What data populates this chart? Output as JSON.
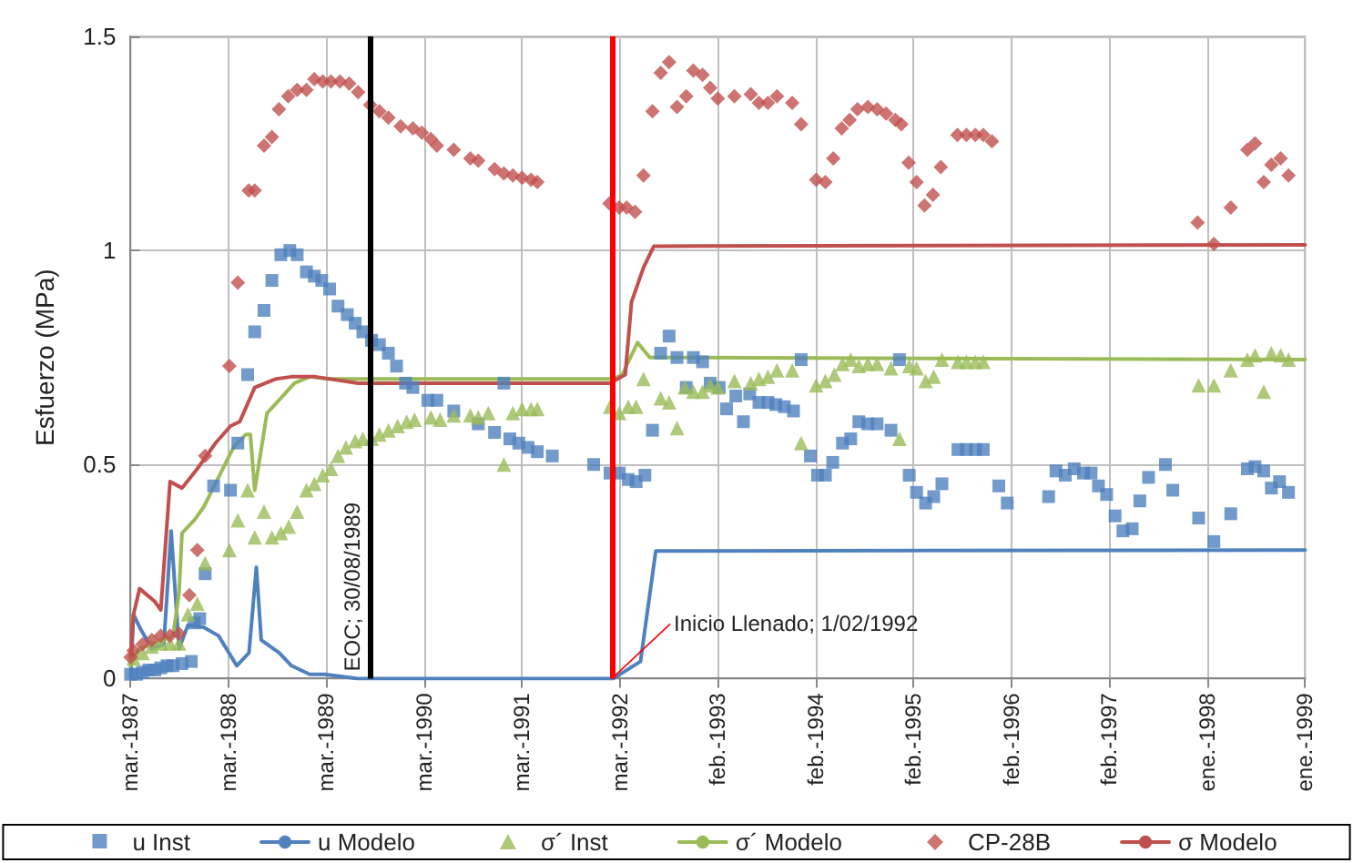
{
  "chart_data": {
    "type": "line",
    "ylabel": "Esfuerzo (MPa)",
    "xlim": [
      "1987-03-31",
      "1999-01-21"
    ],
    "xticks": [
      {
        "value": "1987-03-31",
        "label": "mar.-1987"
      },
      {
        "value": "1988-03-24",
        "label": "mar.-1988"
      },
      {
        "value": "1989-03-19",
        "label": "mar.-1989"
      },
      {
        "value": "1990-03-13",
        "label": "mar.-1990"
      },
      {
        "value": "1991-03-08",
        "label": "mar.-1991"
      },
      {
        "value": "1992-03-02",
        "label": "mar.-1992"
      },
      {
        "value": "1993-02-24",
        "label": "feb.-1993"
      },
      {
        "value": "1994-02-18",
        "label": "feb.-1994"
      },
      {
        "value": "1995-02-13",
        "label": "feb.-1995"
      },
      {
        "value": "1996-02-07",
        "label": "feb.-1996"
      },
      {
        "value": "1997-02-01",
        "label": "feb.-1997"
      },
      {
        "value": "1998-01-26",
        "label": "ene.-1998"
      },
      {
        "value": "1999-01-21",
        "label": "ene.-1999"
      }
    ],
    "ylim": [
      0,
      1.5
    ],
    "yticks": [
      0,
      0.5,
      1,
      1.5
    ],
    "grid": true,
    "legend": "bottom",
    "ref_lines": [
      {
        "axis": "x",
        "value": "1989-08-30",
        "label": "EOC; 30/08/1989",
        "color": "#000000"
      },
      {
        "axis": "x",
        "value": "1992-02-01",
        "color": "#ff0000"
      }
    ],
    "annotations": [
      {
        "text": "Inicio Llenado; 1/02/1992",
        "x": "1992-02-01",
        "y": 0
      }
    ],
    "series": [
      {
        "name": "u Inst",
        "type": "scatter",
        "marker": "square",
        "color": "#4f81bd",
        "x": [
          "1987-03-31",
          "1987-04-22",
          "1987-05-14",
          "1987-06-06",
          "1987-06-28",
          "1987-07-20",
          "1987-08-12",
          "1987-09-03",
          "1987-10-06",
          "1987-11-09",
          "1987-11-20",
          "1987-12-10",
          "1987-12-30",
          "1988-01-30",
          "1988-04-01",
          "1988-04-28",
          "1988-06-03",
          "1988-06-29",
          "1988-08-02",
          "1988-08-31",
          "1988-10-03",
          "1988-11-05",
          "1988-12-02",
          "1989-01-05",
          "1989-02-03",
          "1989-03-02",
          "1989-03-31",
          "1989-05-01",
          "1989-06-04",
          "1989-07-03",
          "1989-07-31",
          "1989-09-01",
          "1989-09-30",
          "1989-11-02",
          "1989-12-02",
          "1990-01-04",
          "1990-01-31",
          "1990-03-27",
          "1990-04-29",
          "1990-06-30",
          "1990-09-28",
          "1990-11-27",
          "1990-12-31",
          "1991-01-22",
          "1991-02-24",
          "1991-03-30",
          "1991-05-03",
          "1991-06-27",
          "1991-11-26",
          "1992-01-25",
          "1992-02-28",
          "1992-04-01",
          "1992-04-30",
          "1992-06-01",
          "1992-06-29",
          "1992-07-29",
          "1992-08-29",
          "1992-09-27",
          "1992-10-31",
          "1992-11-26",
          "1992-12-30",
          "1993-01-27",
          "1993-03-01",
          "1993-03-28",
          "1993-05-01",
          "1993-05-29",
          "1993-06-21",
          "1993-07-25",
          "1993-08-27",
          "1993-09-25",
          "1993-10-26",
          "1993-11-29",
          "1993-12-27",
          "1994-01-30",
          "1994-02-25",
          "1994-03-26",
          "1994-04-22",
          "1994-05-28",
          "1994-06-27",
          "1994-07-27",
          "1994-08-29",
          "1994-10-02",
          "1994-11-22",
          "1994-12-23",
          "1995-01-28",
          "1995-02-24",
          "1995-03-29",
          "1995-04-28",
          "1995-05-28",
          "1995-07-26",
          "1995-08-26",
          "1995-09-28",
          "1995-10-27",
          "1995-12-23",
          "1996-01-23",
          "1996-06-23",
          "1996-07-20",
          "1996-08-23",
          "1996-09-25",
          "1996-10-29",
          "1996-11-26",
          "1996-12-23",
          "1997-01-22",
          "1997-02-22",
          "1997-03-23",
          "1997-04-26",
          "1997-05-24",
          "1997-06-25",
          "1997-08-26",
          "1997-09-22",
          "1997-12-26",
          "1998-02-20",
          "1998-04-23",
          "1998-06-23",
          "1998-07-21",
          "1998-08-22",
          "1998-09-19",
          "1998-10-19",
          "1998-11-21"
        ],
        "values": [
          0.01,
          0.01,
          0.015,
          0.02,
          0.02,
          0.025,
          0.03,
          0.03,
          0.035,
          0.04,
          0.13,
          0.14,
          0.245,
          0.45,
          0.44,
          0.55,
          0.71,
          0.81,
          0.86,
          0.93,
          0.99,
          1.0,
          0.99,
          0.95,
          0.94,
          0.93,
          0.91,
          0.87,
          0.85,
          0.83,
          0.81,
          0.79,
          0.78,
          0.76,
          0.73,
          0.69,
          0.68,
          0.65,
          0.65,
          0.625,
          0.595,
          0.575,
          0.69,
          0.56,
          0.55,
          0.54,
          0.53,
          0.52,
          0.5,
          0.48,
          0.48,
          0.465,
          0.46,
          0.475,
          0.58,
          0.76,
          0.8,
          0.75,
          0.68,
          0.75,
          0.74,
          0.69,
          0.68,
          0.63,
          0.66,
          0.6,
          0.665,
          0.645,
          0.645,
          0.64,
          0.635,
          0.625,
          0.745,
          0.52,
          0.475,
          0.475,
          0.505,
          0.55,
          0.56,
          0.6,
          0.595,
          0.595,
          0.58,
          0.745,
          0.475,
          0.435,
          0.41,
          0.425,
          0.455,
          0.535,
          0.535,
          0.535,
          0.535,
          0.45,
          0.41,
          0.425,
          0.485,
          0.475,
          0.49,
          0.48,
          0.48,
          0.45,
          0.43,
          0.38,
          0.345,
          0.35,
          0.415,
          0.47,
          0.5,
          0.44,
          0.375,
          0.32,
          0.385,
          0.49,
          0.495,
          0.485,
          0.445,
          0.46,
          0.435
        ]
      },
      {
        "name": "u Modelo",
        "marker": "none",
        "color": "#4f81bd",
        "x": [
          "1987-03-31",
          "1987-04-11",
          "1987-05-03",
          "1987-06-17",
          "1987-07-31",
          "1987-08-27",
          "1987-09-25",
          "1987-10-28",
          "1987-12-24",
          "1988-02-17",
          "1988-04-24",
          "1988-06-08",
          "1988-07-05",
          "1988-07-23",
          "1988-09-27",
          "1988-11-11",
          "1989-01-17",
          "1989-03-13",
          "1989-07-14",
          "1992-02-06",
          "1992-05-16",
          "1992-07-11",
          "1999-01-21"
        ],
        "values": [
          0.005,
          0.15,
          0.12,
          0.07,
          0.08,
          0.345,
          0.07,
          0.125,
          0.12,
          0.1,
          0.03,
          0.06,
          0.26,
          0.09,
          0.06,
          0.03,
          0.01,
          0.01,
          0,
          0,
          0.04,
          0.298,
          0.3
        ]
      },
      {
        "name": "σ´ Inst",
        "type": "scatter",
        "marker": "triangle",
        "color": "#9bbb59",
        "x": [
          "1987-04-11",
          "1987-05-14",
          "1987-06-17",
          "1987-07-20",
          "1987-08-23",
          "1987-09-25",
          "1987-10-28",
          "1987-12-01",
          "1987-12-30",
          "1988-03-28",
          "1988-04-28",
          "1988-06-03",
          "1988-06-29",
          "1988-08-02",
          "1988-08-31",
          "1988-10-03",
          "1988-11-01",
          "1988-12-02",
          "1989-01-05",
          "1989-02-03",
          "1989-03-06",
          "1989-04-05",
          "1989-05-01",
          "1989-05-30",
          "1989-07-03",
          "1989-07-31",
          "1989-09-01",
          "1989-09-30",
          "1989-11-02",
          "1989-12-06",
          "1990-01-08",
          "1990-02-06",
          "1990-04-07",
          "1990-05-11",
          "1990-06-30",
          "1990-08-30",
          "1990-09-28",
          "1990-11-04",
          "1990-12-31",
          "1991-02-02",
          "1991-03-08",
          "1991-04-10",
          "1991-05-03",
          "1992-01-25",
          "1992-02-28",
          "1992-04-01",
          "1992-04-30",
          "1992-05-27",
          "1992-07-29",
          "1992-08-29",
          "1992-09-27",
          "1992-10-26",
          "1992-11-26",
          "1992-12-30",
          "1993-01-27",
          "1993-02-24",
          "1993-04-26",
          "1993-06-25",
          "1993-07-25",
          "1993-08-27",
          "1993-09-29",
          "1993-11-24",
          "1993-12-27",
          "1994-02-20",
          "1994-03-26",
          "1994-04-28",
          "1994-05-28",
          "1994-06-27",
          "1994-07-27",
          "1994-08-29",
          "1994-10-02",
          "1994-11-22",
          "1994-12-23",
          "1995-01-28",
          "1995-02-24",
          "1995-03-29",
          "1995-04-28",
          "1995-05-28",
          "1995-07-26",
          "1995-08-26",
          "1995-09-28",
          "1995-10-27",
          "1997-12-26",
          "1998-02-20",
          "1998-04-23",
          "1998-06-23",
          "1998-07-21",
          "1998-08-22",
          "1998-09-19",
          "1998-10-23",
          "1998-11-21"
        ],
        "values": [
          0.047,
          0.06,
          0.075,
          0.082,
          0.082,
          0.082,
          0.15,
          0.175,
          0.27,
          0.3,
          0.37,
          0.44,
          0.33,
          0.39,
          0.33,
          0.34,
          0.355,
          0.39,
          0.44,
          0.455,
          0.475,
          0.49,
          0.52,
          0.54,
          0.555,
          0.56,
          0.56,
          0.57,
          0.58,
          0.59,
          0.6,
          0.605,
          0.61,
          0.605,
          0.615,
          0.615,
          0.61,
          0.62,
          0.5,
          0.62,
          0.63,
          0.63,
          0.63,
          0.635,
          0.62,
          0.635,
          0.635,
          0.7,
          0.655,
          0.645,
          0.585,
          0.68,
          0.67,
          0.67,
          0.685,
          0.68,
          0.695,
          0.69,
          0.7,
          0.705,
          0.72,
          0.72,
          0.55,
          0.685,
          0.695,
          0.71,
          0.735,
          0.745,
          0.73,
          0.735,
          0.735,
          0.725,
          0.56,
          0.73,
          0.725,
          0.695,
          0.705,
          0.745,
          0.74,
          0.74,
          0.74,
          0.74,
          0.685,
          0.685,
          0.72,
          0.745,
          0.755,
          0.67,
          0.76,
          0.755,
          0.745
        ]
      },
      {
        "name": "σ´ Modelo",
        "marker": "none",
        "color": "#9bbb59",
        "x": [
          "1987-03-31",
          "1987-05-03",
          "1987-06-17",
          "1987-07-31",
          "1987-09-03",
          "1987-09-25",
          "1987-10-06",
          "1987-11-20",
          "1987-12-24",
          "1988-02-17",
          "1988-04-12",
          "1988-05-27",
          "1988-06-13",
          "1988-06-29",
          "1988-08-13",
          "1988-09-26",
          "1988-11-22",
          "1989-01-17",
          "1989-03-24",
          "1989-07-14",
          "1992-02-06",
          "1992-03-10",
          "1992-05-05",
          "1992-06-19",
          "1999-01-21"
        ],
        "values": [
          0.03,
          0.07,
          0.08,
          0.09,
          0.1,
          0.2,
          0.34,
          0.37,
          0.4,
          0.47,
          0.54,
          0.57,
          0.57,
          0.44,
          0.62,
          0.65,
          0.69,
          0.705,
          0.7,
          0.7,
          0.7,
          0.71,
          0.785,
          0.75,
          0.745
        ]
      },
      {
        "name": "CP-28B",
        "type": "scatter",
        "marker": "diamond",
        "color": "#c0504d",
        "x": [
          "1987-03-31",
          "1987-04-11",
          "1987-05-14",
          "1987-06-17",
          "1987-07-20",
          "1987-08-23",
          "1987-09-25",
          "1987-11-02",
          "1987-12-01",
          "1987-12-30",
          "1988-03-28",
          "1988-04-28",
          "1988-06-07",
          "1988-06-29",
          "1988-08-02",
          "1988-08-31",
          "1988-09-26",
          "1988-10-30",
          "1988-12-02",
          "1989-01-05",
          "1989-02-03",
          "1989-03-06",
          "1989-04-05",
          "1989-05-08",
          "1989-06-11",
          "1989-07-14",
          "1989-08-27",
          "1989-09-30",
          "1989-11-02",
          "1989-12-17",
          "1990-01-31",
          "1990-03-05",
          "1990-04-07",
          "1990-04-29",
          "1990-06-30",
          "1990-08-30",
          "1990-09-28",
          "1990-11-27",
          "1990-12-31",
          "1991-02-02",
          "1991-03-08",
          "1991-04-10",
          "1991-05-03",
          "1992-01-23",
          "1992-02-28",
          "1992-03-26",
          "1992-04-26",
          "1992-05-27",
          "1992-06-29",
          "1992-07-29",
          "1992-08-29",
          "1992-09-27",
          "1992-10-31",
          "1992-11-26",
          "1992-12-30",
          "1993-01-27",
          "1993-02-24",
          "1993-04-26",
          "1993-06-25",
          "1993-07-25",
          "1993-08-27",
          "1993-09-29",
          "1993-11-24",
          "1993-12-27",
          "1994-02-20",
          "1994-03-26",
          "1994-04-24",
          "1994-05-25",
          "1994-06-23",
          "1994-07-22",
          "1994-08-29",
          "1994-10-02",
          "1994-11-04",
          "1994-12-08",
          "1994-12-30",
          "1995-01-26",
          "1995-02-24",
          "1995-03-25",
          "1995-04-25",
          "1995-05-24",
          "1995-07-24",
          "1995-08-26",
          "1995-09-28",
          "1995-10-27",
          "1995-11-28",
          "1997-12-22",
          "1998-02-20",
          "1998-04-23",
          "1998-06-23",
          "1998-07-21",
          "1998-08-22",
          "1998-09-19",
          "1998-10-23",
          "1998-11-21"
        ],
        "values": [
          0.05,
          0.065,
          0.08,
          0.09,
          0.1,
          0.1,
          0.105,
          0.195,
          0.3,
          0.52,
          0.73,
          0.925,
          1.14,
          1.14,
          1.245,
          1.265,
          1.33,
          1.36,
          1.375,
          1.375,
          1.4,
          1.395,
          1.395,
          1.395,
          1.39,
          1.37,
          1.34,
          1.325,
          1.31,
          1.29,
          1.285,
          1.275,
          1.26,
          1.245,
          1.235,
          1.215,
          1.21,
          1.19,
          1.18,
          1.175,
          1.17,
          1.165,
          1.16,
          1.11,
          1.1,
          1.1,
          1.09,
          1.175,
          1.325,
          1.415,
          1.44,
          1.335,
          1.36,
          1.42,
          1.41,
          1.38,
          1.355,
          1.36,
          1.365,
          1.345,
          1.345,
          1.36,
          1.345,
          1.295,
          1.165,
          1.16,
          1.215,
          1.285,
          1.305,
          1.33,
          1.335,
          1.33,
          1.32,
          1.305,
          1.295,
          1.205,
          1.16,
          1.105,
          1.13,
          1.195,
          1.27,
          1.27,
          1.27,
          1.27,
          1.255,
          1.065,
          1.015,
          1.1,
          1.235,
          1.25,
          1.16,
          1.2,
          1.215,
          1.175
        ]
      },
      {
        "name": "σ Modelo",
        "marker": "none",
        "color": "#c0504d",
        "x": [
          "1987-03-31",
          "1987-04-11",
          "1987-05-03",
          "1987-06-28",
          "1987-07-20",
          "1987-08-23",
          "1987-10-06",
          "1987-12-01",
          "1988-02-06",
          "1988-04-01",
          "1988-05-05",
          "1988-06-29",
          "1988-09-16",
          "1988-11-11",
          "1989-02-07",
          "1989-07-14",
          "1992-01-25",
          "1992-03-21",
          "1992-04-13",
          "1992-05-27",
          "1992-07-04",
          "1999-01-21"
        ],
        "values": [
          0.05,
          0.15,
          0.21,
          0.18,
          0.16,
          0.46,
          0.445,
          0.49,
          0.55,
          0.59,
          0.6,
          0.68,
          0.7,
          0.705,
          0.705,
          0.69,
          0.69,
          0.71,
          0.88,
          0.96,
          1.01,
          1.013
        ]
      }
    ]
  }
}
